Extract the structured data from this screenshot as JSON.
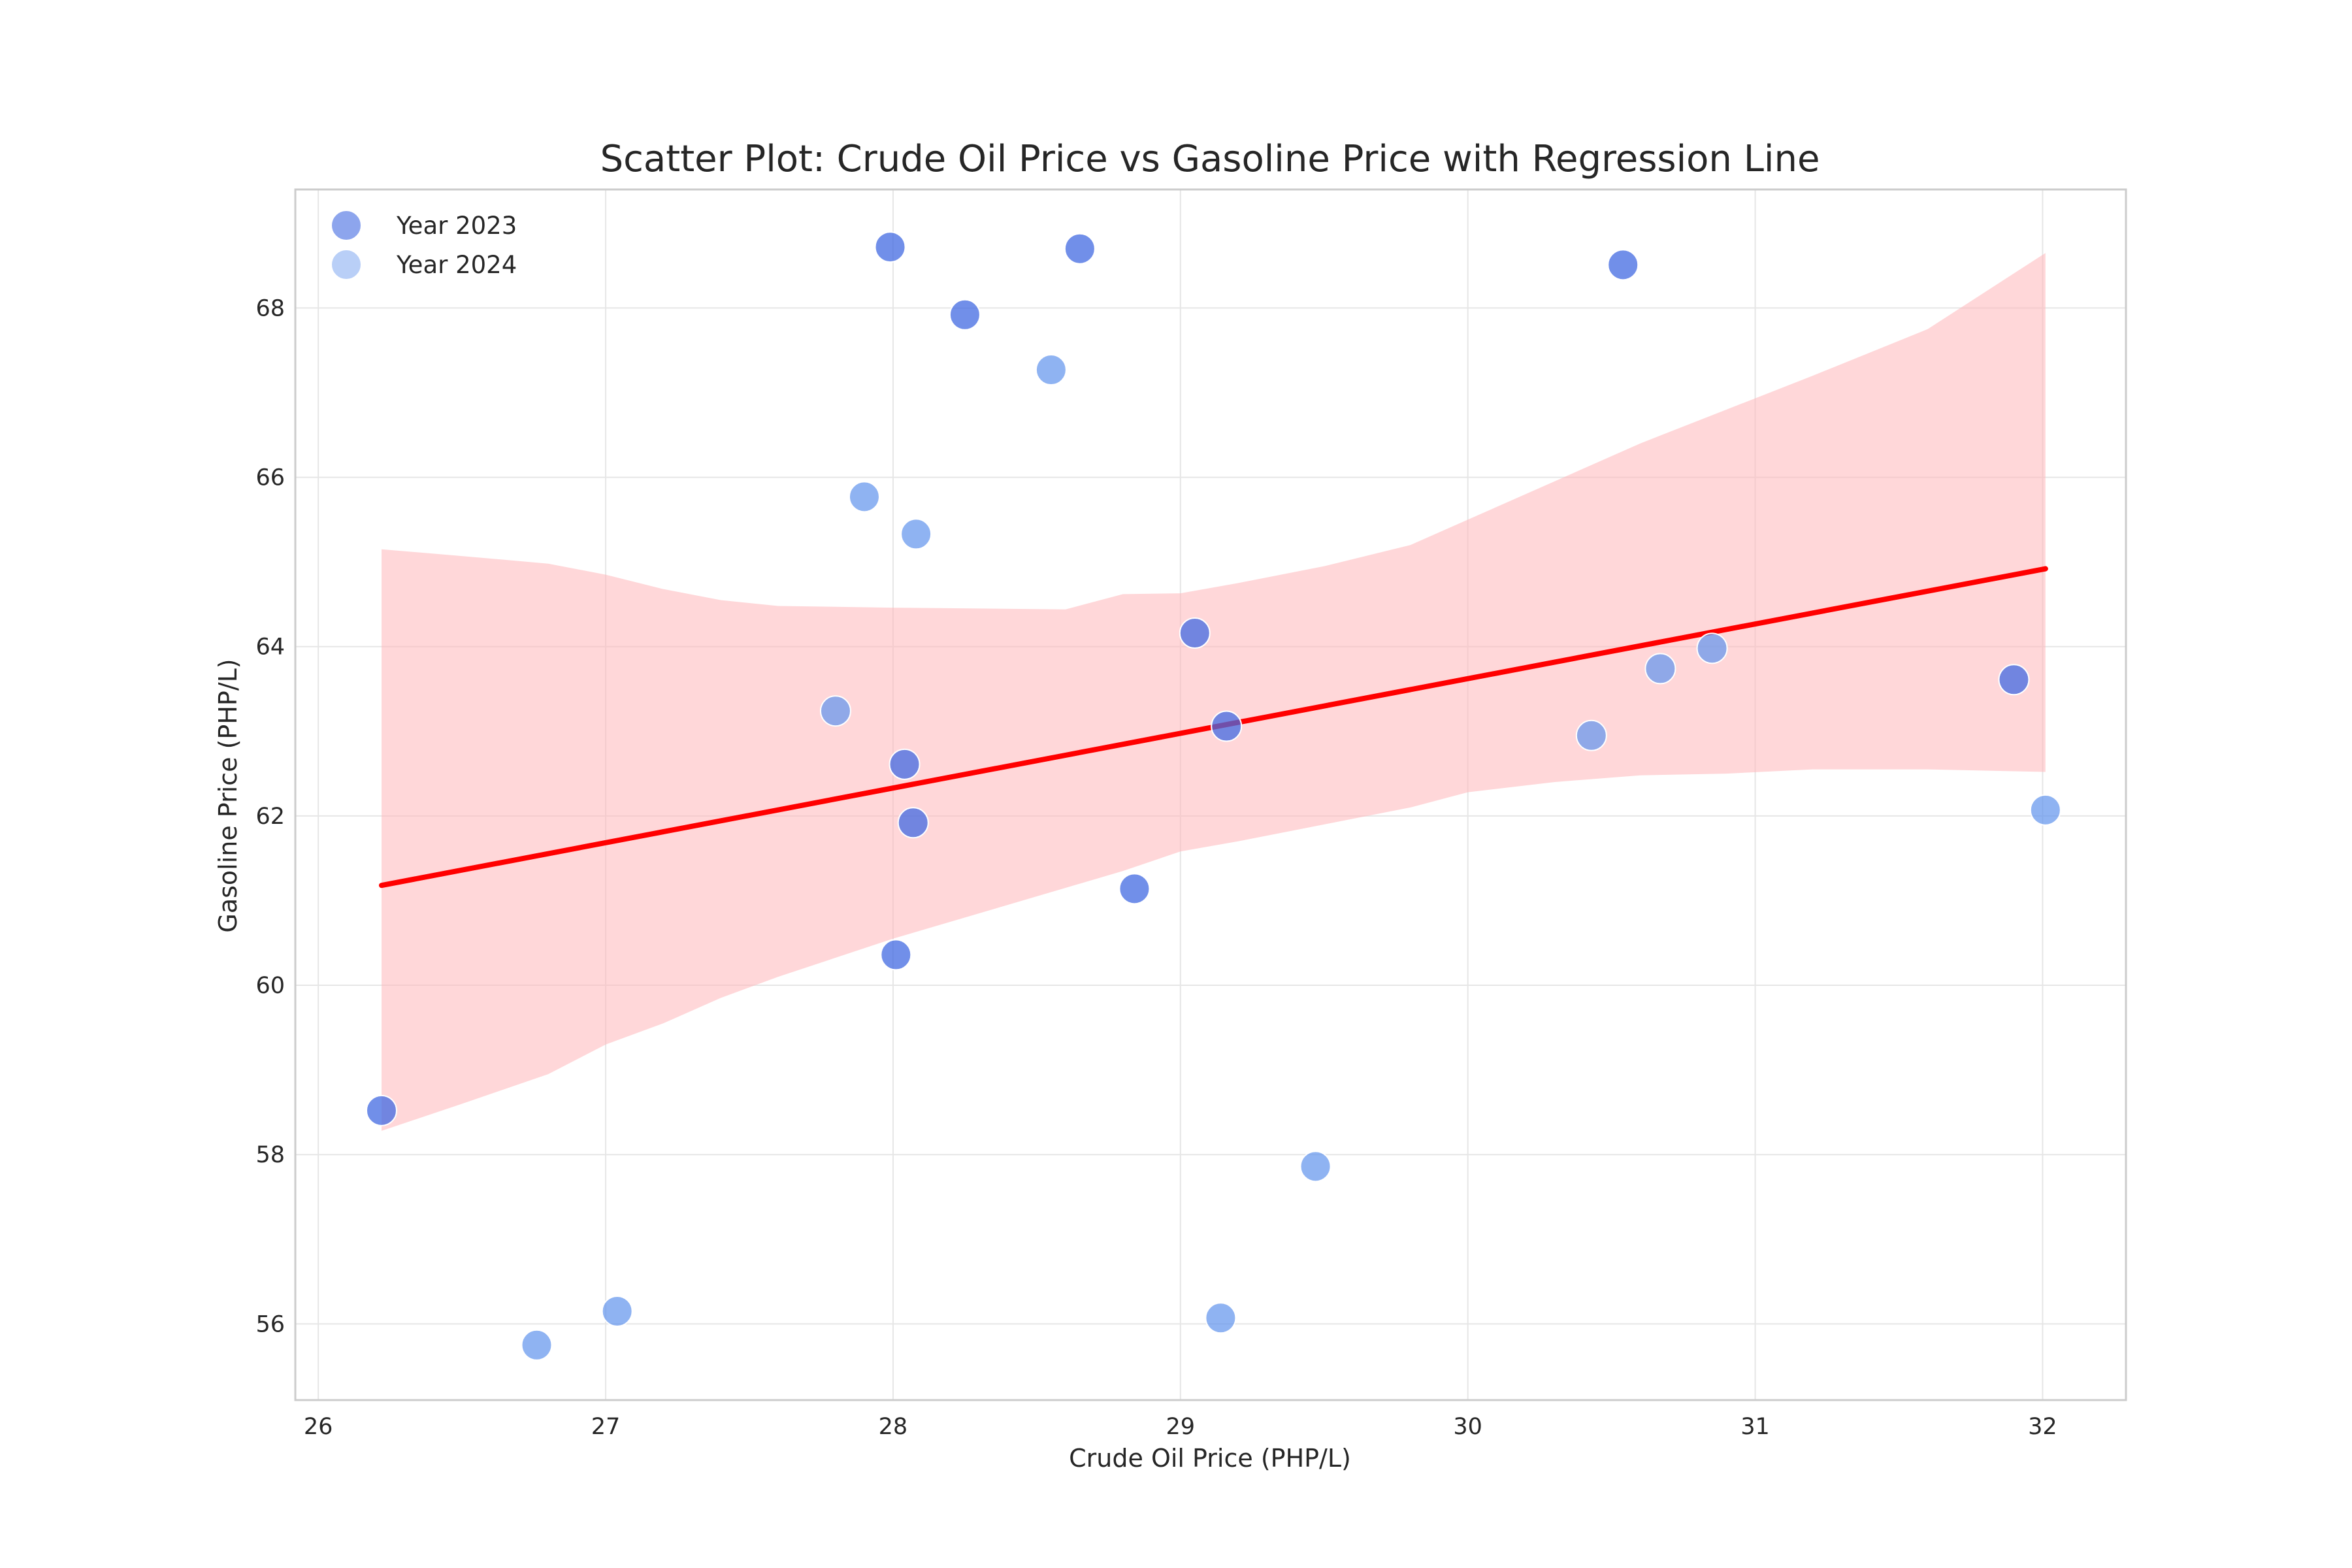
{
  "chart_data": {
    "type": "scatter",
    "title": "Scatter Plot: Crude Oil Price vs Gasoline Price with Regression Line",
    "xlabel": "Crude Oil Price (PHP/L)",
    "ylabel": "Gasoline Price (PHP/L)",
    "xlim": [
      25.92,
      32.29
    ],
    "ylim": [
      55.1,
      69.4
    ],
    "xticks": [
      26,
      27,
      28,
      29,
      30,
      31,
      32
    ],
    "yticks": [
      56,
      58,
      60,
      62,
      64,
      66,
      68
    ],
    "grid": true,
    "legend_position": "top-left",
    "colors": {
      "series_2023": "#4169e1",
      "series_2024": "#6495ed",
      "regression": "#ff0000",
      "band": "#ffb6b9"
    },
    "series": [
      {
        "name": "Year 2023",
        "points": [
          [
            26.22,
            58.52
          ],
          [
            27.99,
            68.72
          ],
          [
            28.65,
            68.7
          ],
          [
            28.25,
            67.92
          ],
          [
            30.54,
            68.51
          ],
          [
            29.05,
            64.16
          ],
          [
            29.16,
            63.06
          ],
          [
            28.04,
            62.61
          ],
          [
            28.07,
            61.92
          ],
          [
            28.84,
            61.14
          ],
          [
            28.01,
            60.36
          ],
          [
            31.9,
            63.61
          ]
        ]
      },
      {
        "name": "Year 2024",
        "points": [
          [
            28.55,
            67.27
          ],
          [
            27.9,
            65.77
          ],
          [
            28.08,
            65.33
          ],
          [
            27.8,
            63.24
          ],
          [
            30.43,
            62.95
          ],
          [
            30.67,
            63.74
          ],
          [
            30.85,
            63.98
          ],
          [
            32.01,
            62.07
          ],
          [
            29.47,
            57.86
          ],
          [
            29.14,
            56.07
          ],
          [
            27.04,
            56.15
          ],
          [
            26.76,
            55.75
          ]
        ]
      }
    ],
    "regression": {
      "x": [
        26.22,
        32.01
      ],
      "y": [
        61.18,
        64.92
      ],
      "band_x": [
        26.22,
        26.5,
        26.8,
        27.0,
        27.2,
        27.4,
        27.6,
        28.0,
        28.6,
        28.8,
        29.0,
        29.2,
        29.5,
        29.8,
        30.0,
        30.3,
        30.6,
        30.9,
        31.2,
        31.6,
        32.01
      ],
      "band_upper": [
        65.15,
        65.07,
        64.98,
        64.85,
        64.68,
        64.55,
        64.48,
        64.46,
        64.44,
        64.62,
        64.63,
        64.75,
        64.95,
        65.2,
        65.5,
        65.95,
        66.4,
        66.8,
        67.2,
        67.75,
        68.65
      ],
      "band_lower": [
        58.28,
        58.6,
        58.95,
        59.3,
        59.55,
        59.85,
        60.1,
        60.55,
        61.15,
        61.35,
        61.58,
        61.7,
        61.9,
        62.1,
        62.28,
        62.4,
        62.48,
        62.5,
        62.55,
        62.55,
        62.52
      ]
    }
  }
}
